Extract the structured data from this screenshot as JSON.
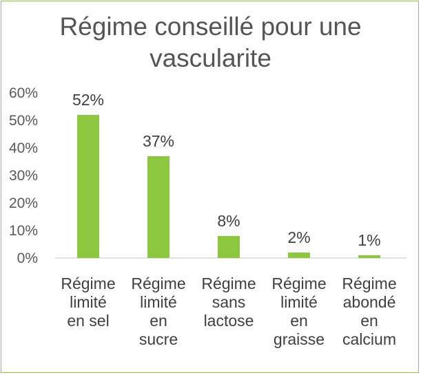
{
  "chart_data": {
    "type": "bar",
    "title_lines": [
      "Régime conseillé pour une",
      "vascularite"
    ],
    "categories": [
      [
        "Régime",
        "limité",
        "en sel"
      ],
      [
        "Régime",
        "limité",
        "en",
        "sucre"
      ],
      [
        "Régime",
        "sans",
        "lactose"
      ],
      [
        "Régime",
        "limité",
        "en",
        "graisse"
      ],
      [
        "Régime",
        "abondé",
        "en",
        "calcium"
      ]
    ],
    "values": [
      52,
      37,
      8,
      2,
      1
    ],
    "data_labels": [
      "52%",
      "37%",
      "8%",
      "2%",
      "1%"
    ],
    "y_ticks": [
      "0%",
      "10%",
      "20%",
      "30%",
      "40%",
      "50%",
      "60%"
    ],
    "ylim": [
      0,
      60
    ],
    "grid": false,
    "bar_color": "#8dc63f"
  }
}
